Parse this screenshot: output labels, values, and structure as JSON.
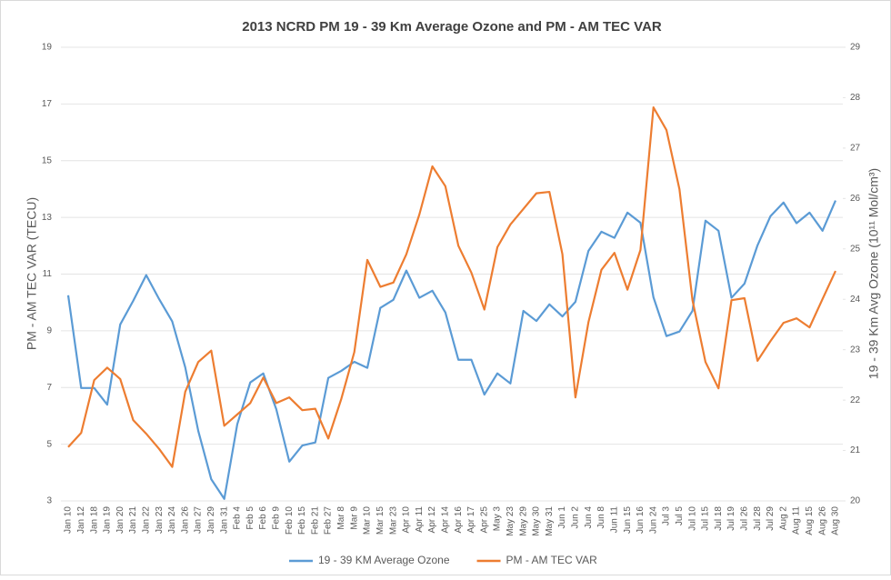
{
  "chart_data": {
    "type": "line",
    "title": "2013 NCRD PM 19 - 39 Km Average Ozone and PM - AM TEC VAR",
    "y_label": "PM - AM TEC VAR (TECU)",
    "y2_label": "19 - 39 Km Avg Ozone (10¹¹ Mol/cm³)",
    "categories": [
      "Jan 10",
      "Jan 12",
      "Jan 18",
      "Jan 19",
      "Jan 20",
      "Jan 21",
      "Jan 22",
      "Jan 23",
      "Jan 24",
      "Jan 26",
      "Jan 27",
      "Jan 29",
      "Jan 31",
      "Feb 4",
      "Feb 5",
      "Feb 6",
      "Feb 9",
      "Feb 10",
      "Feb 15",
      "Feb 21",
      "Feb 27",
      "Mar 8",
      "Mar 9",
      "Mar 10",
      "Mar 15",
      "Mar 23",
      "Apr 10",
      "Apr 11",
      "Apr 12",
      "Apr 14",
      "Apr 16",
      "Apr 17",
      "Apr 25",
      "May 3",
      "May 23",
      "May 29",
      "May 30",
      "May 31",
      "Jun 1",
      "Jun 2",
      "Jun 4",
      "Jun 8",
      "Jun 11",
      "Jun 15",
      "Jun 16",
      "Jun 24",
      "Jul 3",
      "Jul 5",
      "Jul 10",
      "Jul 15",
      "Jul 18",
      "Jul 19",
      "Jul 26",
      "Jul 28",
      "Jul 29",
      "Aug 2",
      "Aug 11",
      "Aug 15",
      "Aug 26",
      "Aug 30"
    ],
    "series": [
      {
        "name": "19 - 39 KM Average Ozone",
        "color": "#5b9bd5",
        "axis": "y2",
        "values": [
          24.08,
          22.24,
          22.24,
          21.91,
          23.5,
          23.97,
          24.48,
          24.0,
          23.56,
          22.65,
          21.39,
          20.43,
          20.04,
          21.52,
          22.35,
          22.53,
          21.82,
          20.78,
          21.1,
          21.16,
          22.44,
          22.58,
          22.76,
          22.64,
          23.83,
          23.99,
          24.57,
          24.03,
          24.17,
          23.74,
          22.8,
          22.8,
          22.11,
          22.53,
          22.33,
          23.77,
          23.57,
          23.9,
          23.66,
          23.95,
          24.96,
          25.34,
          25.22,
          25.72,
          25.52,
          24.04,
          23.27,
          23.36,
          23.77,
          25.56,
          25.36,
          24.03,
          24.31,
          25.07,
          25.65,
          25.92,
          25.51,
          25.72,
          25.36,
          25.96
        ]
      },
      {
        "name": "PM - AM TEC VAR",
        "color": "#ed7d31",
        "values": [
          4.9,
          5.4,
          7.26,
          7.7,
          7.3,
          5.85,
          5.37,
          4.83,
          4.2,
          6.85,
          7.9,
          8.3,
          5.65,
          6.05,
          6.45,
          7.35,
          6.45,
          6.65,
          6.2,
          6.25,
          5.2,
          6.6,
          8.25,
          11.5,
          10.55,
          10.7,
          11.7,
          13.1,
          14.8,
          14.1,
          12.0,
          11.05,
          9.75,
          11.95,
          12.75,
          13.3,
          13.85,
          13.9,
          11.7,
          6.65,
          9.3,
          11.15,
          11.75,
          10.45,
          11.85,
          16.88,
          16.08,
          13.99,
          10.08,
          7.9,
          6.97,
          10.08,
          10.15,
          7.94,
          8.64,
          9.28,
          9.44,
          9.12,
          10.12,
          11.11
        ]
      }
    ],
    "ylim": [
      3,
      19
    ],
    "yticks": [
      3,
      5,
      7,
      9,
      11,
      13,
      15,
      17,
      19
    ],
    "y2lim": [
      20,
      29
    ],
    "y2ticks": [
      20,
      21,
      22,
      23,
      24,
      25,
      26,
      27,
      28,
      29
    ],
    "grid": true,
    "legend": "bottom"
  }
}
